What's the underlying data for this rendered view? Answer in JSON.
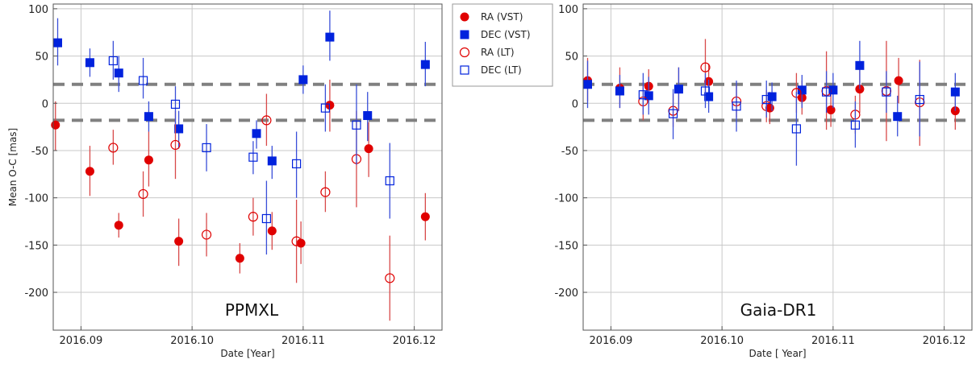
{
  "colors": {
    "ra": "#e00000",
    "dec": "#0022dd",
    "ra_err": "#d84a4a",
    "dec_err": "#3a4fd8",
    "grid": "#c8c8c8",
    "ref": "#808080"
  },
  "legend": {
    "placement": "between-panels-top",
    "entries": [
      {
        "label": "RA (VST)",
        "marker": "filled-circle",
        "color": "#e00000"
      },
      {
        "label": "DEC (VST)",
        "marker": "filled-square",
        "color": "#0022dd"
      },
      {
        "label": "RA (LT)",
        "marker": "open-circle",
        "color": "#e00000"
      },
      {
        "label": "DEC (LT)",
        "marker": "open-square",
        "color": "#0022dd"
      }
    ]
  },
  "chart_data": [
    {
      "type": "scatter",
      "panel_label": "PPMXL",
      "xlabel": "Date [Year]",
      "ylabel": "Mean O-C [mas]",
      "xlim": [
        2016.0875,
        2016.1225
      ],
      "ylim": [
        -240,
        105
      ],
      "xticks": [
        2016.09,
        2016.1,
        2016.11,
        2016.12
      ],
      "xtick_labels": [
        "2016.09",
        "2016.10",
        "2016.11",
        "2016.12"
      ],
      "yticks": [
        -200,
        -150,
        -100,
        -50,
        0,
        50,
        100
      ],
      "ytick_labels": [
        "-200",
        "-150",
        "-100",
        "-50",
        "0",
        "50",
        "100"
      ],
      "grid": true,
      "reference_lines": [
        20,
        -18
      ],
      "series": [
        {
          "name": "RA (VST)",
          "marker": "filled-circle",
          "points": [
            {
              "x": 2016.0877,
              "y": -23,
              "lo": -50,
              "hi": 2
            },
            {
              "x": 2016.0908,
              "y": -72,
              "lo": -98,
              "hi": -45
            },
            {
              "x": 2016.0934,
              "y": -129,
              "lo": -142,
              "hi": -116
            },
            {
              "x": 2016.0961,
              "y": -60,
              "lo": -88,
              "hi": -30
            },
            {
              "x": 2016.0988,
              "y": -146,
              "lo": -172,
              "hi": -122
            },
            {
              "x": 2016.1043,
              "y": -164,
              "lo": -180,
              "hi": -148
            },
            {
              "x": 2016.1072,
              "y": -135,
              "lo": -155,
              "hi": -115
            },
            {
              "x": 2016.1098,
              "y": -148,
              "lo": -170,
              "hi": -125
            },
            {
              "x": 2016.1124,
              "y": -2,
              "lo": -30,
              "hi": 25
            },
            {
              "x": 2016.1159,
              "y": -48,
              "lo": -78,
              "hi": -20
            },
            {
              "x": 2016.121,
              "y": -120,
              "lo": -145,
              "hi": -95
            }
          ]
        },
        {
          "name": "DEC (VST)",
          "marker": "filled-square",
          "points": [
            {
              "x": 2016.0879,
              "y": 64,
              "lo": 40,
              "hi": 90
            },
            {
              "x": 2016.0908,
              "y": 43,
              "lo": 28,
              "hi": 58
            },
            {
              "x": 2016.0934,
              "y": 32,
              "lo": 12,
              "hi": 50
            },
            {
              "x": 2016.0961,
              "y": -14,
              "lo": -30,
              "hi": 2
            },
            {
              "x": 2016.0988,
              "y": -27,
              "lo": -48,
              "hi": -8
            },
            {
              "x": 2016.1058,
              "y": -32,
              "lo": -48,
              "hi": -18
            },
            {
              "x": 2016.1072,
              "y": -61,
              "lo": -80,
              "hi": -45
            },
            {
              "x": 2016.11,
              "y": 25,
              "lo": 10,
              "hi": 40
            },
            {
              "x": 2016.1124,
              "y": 70,
              "lo": 45,
              "hi": 98
            },
            {
              "x": 2016.1158,
              "y": -13,
              "lo": -40,
              "hi": 12
            },
            {
              "x": 2016.121,
              "y": 41,
              "lo": 18,
              "hi": 65
            }
          ]
        },
        {
          "name": "RA (LT)",
          "marker": "open-circle",
          "points": [
            {
              "x": 2016.0929,
              "y": -47,
              "lo": -65,
              "hi": -28
            },
            {
              "x": 2016.0956,
              "y": -96,
              "lo": -120,
              "hi": -72
            },
            {
              "x": 2016.0985,
              "y": -44,
              "lo": -80,
              "hi": -8
            },
            {
              "x": 2016.1013,
              "y": -139,
              "lo": -162,
              "hi": -116
            },
            {
              "x": 2016.1055,
              "y": -120,
              "lo": -140,
              "hi": -100
            },
            {
              "x": 2016.1067,
              "y": -18,
              "lo": -45,
              "hi": 10
            },
            {
              "x": 2016.1094,
              "y": -146,
              "lo": -190,
              "hi": -102
            },
            {
              "x": 2016.112,
              "y": -94,
              "lo": -115,
              "hi": -72
            },
            {
              "x": 2016.1148,
              "y": -59,
              "lo": -110,
              "hi": -8
            },
            {
              "x": 2016.1178,
              "y": -185,
              "lo": -230,
              "hi": -140
            }
          ]
        },
        {
          "name": "DEC (LT)",
          "marker": "open-square",
          "points": [
            {
              "x": 2016.0929,
              "y": 45,
              "lo": 25,
              "hi": 66
            },
            {
              "x": 2016.0956,
              "y": 24,
              "lo": 5,
              "hi": 48
            },
            {
              "x": 2016.0985,
              "y": -1,
              "lo": -22,
              "hi": 18
            },
            {
              "x": 2016.1013,
              "y": -47,
              "lo": -72,
              "hi": -22
            },
            {
              "x": 2016.1055,
              "y": -57,
              "lo": -75,
              "hi": -40
            },
            {
              "x": 2016.1067,
              "y": -122,
              "lo": -160,
              "hi": -82
            },
            {
              "x": 2016.1094,
              "y": -64,
              "lo": -100,
              "hi": -30
            },
            {
              "x": 2016.112,
              "y": -5,
              "lo": -30,
              "hi": 20
            },
            {
              "x": 2016.1148,
              "y": -23,
              "lo": -65,
              "hi": 20
            },
            {
              "x": 2016.1178,
              "y": -82,
              "lo": -122,
              "hi": -42
            }
          ]
        }
      ]
    },
    {
      "type": "scatter",
      "panel_label": "Gaia-DR1",
      "xlabel": "Date [ Year]",
      "ylabel": "",
      "xlim": [
        2016.0875,
        2016.1225
      ],
      "ylim": [
        -240,
        105
      ],
      "xticks": [
        2016.09,
        2016.1,
        2016.11,
        2016.12
      ],
      "xtick_labels": [
        "2016.09",
        "2016.10",
        "2016.11",
        "2016.12"
      ],
      "yticks": [
        -200,
        -150,
        -100,
        -50,
        0,
        50,
        100
      ],
      "ytick_labels": [
        "-200",
        "-150",
        "-100",
        "-50",
        "0",
        "50",
        "100"
      ],
      "grid": true,
      "reference_lines": [
        20,
        -18
      ],
      "series": [
        {
          "name": "RA (VST)",
          "marker": "filled-circle",
          "points": [
            {
              "x": 2016.0879,
              "y": 24,
              "lo": 2,
              "hi": 48
            },
            {
              "x": 2016.0908,
              "y": 16,
              "lo": -5,
              "hi": 38
            },
            {
              "x": 2016.0934,
              "y": 18,
              "lo": 0,
              "hi": 36
            },
            {
              "x": 2016.0961,
              "y": 15,
              "lo": -8,
              "hi": 38
            },
            {
              "x": 2016.0988,
              "y": 23,
              "lo": 5,
              "hi": 42
            },
            {
              "x": 2016.1043,
              "y": -5,
              "lo": -22,
              "hi": 12
            },
            {
              "x": 2016.1072,
              "y": 6,
              "lo": -12,
              "hi": 24
            },
            {
              "x": 2016.1098,
              "y": -7,
              "lo": -25,
              "hi": 10
            },
            {
              "x": 2016.1124,
              "y": 15,
              "lo": -10,
              "hi": 40
            },
            {
              "x": 2016.1159,
              "y": 24,
              "lo": 0,
              "hi": 48
            },
            {
              "x": 2016.121,
              "y": -8,
              "lo": -28,
              "hi": 12
            }
          ]
        },
        {
          "name": "DEC (VST)",
          "marker": "filled-square",
          "points": [
            {
              "x": 2016.0879,
              "y": 20,
              "lo": -5,
              "hi": 45
            },
            {
              "x": 2016.0908,
              "y": 13,
              "lo": -5,
              "hi": 30
            },
            {
              "x": 2016.0934,
              "y": 8,
              "lo": -12,
              "hi": 28
            },
            {
              "x": 2016.0961,
              "y": 15,
              "lo": -8,
              "hi": 38
            },
            {
              "x": 2016.0988,
              "y": 7,
              "lo": -10,
              "hi": 25
            },
            {
              "x": 2016.1045,
              "y": 7,
              "lo": -8,
              "hi": 22
            },
            {
              "x": 2016.1072,
              "y": 14,
              "lo": -5,
              "hi": 30
            },
            {
              "x": 2016.11,
              "y": 14,
              "lo": -5,
              "hi": 32
            },
            {
              "x": 2016.1124,
              "y": 40,
              "lo": 15,
              "hi": 66
            },
            {
              "x": 2016.1158,
              "y": -14,
              "lo": -35,
              "hi": 8
            },
            {
              "x": 2016.121,
              "y": 12,
              "lo": -8,
              "hi": 32
            }
          ]
        },
        {
          "name": "RA (LT)",
          "marker": "open-circle",
          "points": [
            {
              "x": 2016.0929,
              "y": 2,
              "lo": -18,
              "hi": 22
            },
            {
              "x": 2016.0956,
              "y": -8,
              "lo": -25,
              "hi": 10
            },
            {
              "x": 2016.0985,
              "y": 38,
              "lo": 12,
              "hi": 68
            },
            {
              "x": 2016.1013,
              "y": 2,
              "lo": -15,
              "hi": 20
            },
            {
              "x": 2016.104,
              "y": -3,
              "lo": -20,
              "hi": 14
            },
            {
              "x": 2016.1067,
              "y": 11,
              "lo": -10,
              "hi": 32
            },
            {
              "x": 2016.1094,
              "y": 13,
              "lo": -28,
              "hi": 55
            },
            {
              "x": 2016.112,
              "y": -12,
              "lo": -32,
              "hi": 8
            },
            {
              "x": 2016.1148,
              "y": 13,
              "lo": -40,
              "hi": 66
            },
            {
              "x": 2016.1178,
              "y": 1,
              "lo": -45,
              "hi": 46
            }
          ]
        },
        {
          "name": "DEC (LT)",
          "marker": "open-square",
          "points": [
            {
              "x": 2016.0929,
              "y": 9,
              "lo": -12,
              "hi": 32
            },
            {
              "x": 2016.0956,
              "y": -11,
              "lo": -38,
              "hi": 15
            },
            {
              "x": 2016.0985,
              "y": 13,
              "lo": -5,
              "hi": 32
            },
            {
              "x": 2016.1013,
              "y": -3,
              "lo": -30,
              "hi": 24
            },
            {
              "x": 2016.104,
              "y": 4,
              "lo": -15,
              "hi": 24
            },
            {
              "x": 2016.1067,
              "y": -27,
              "lo": -66,
              "hi": 12
            },
            {
              "x": 2016.1094,
              "y": 12,
              "lo": -10,
              "hi": 34
            },
            {
              "x": 2016.112,
              "y": -23,
              "lo": -47,
              "hi": 2
            },
            {
              "x": 2016.1148,
              "y": 12,
              "lo": -10,
              "hi": 34
            },
            {
              "x": 2016.1178,
              "y": 4,
              "lo": -35,
              "hi": 44
            }
          ]
        }
      ]
    }
  ]
}
